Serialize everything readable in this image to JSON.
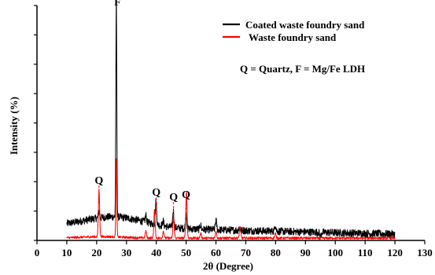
{
  "chart_data": {
    "type": "line",
    "title": "",
    "xlabel": "2θ (Degree)",
    "ylabel": "Intensity (%)",
    "xlim": [
      0,
      130
    ],
    "ylim": [
      0,
      100
    ],
    "x_ticks": [
      0,
      10,
      20,
      30,
      40,
      50,
      60,
      70,
      80,
      90,
      100,
      110,
      120,
      130
    ],
    "y_tick_labels_shown": false,
    "grid": false,
    "legend_position": "top-right",
    "legend_note": "Q = Quartz, F = Mg/Fe LDH",
    "series": [
      {
        "name": "Coated waste foundry sand",
        "color": "#000000",
        "x_range": [
          10,
          120
        ],
        "baseline": 6,
        "peaks": [
          {
            "x": 20.8,
            "y": 9
          },
          {
            "x": 26.6,
            "y": 98
          },
          {
            "x": 36.5,
            "y": 9
          },
          {
            "x": 39.9,
            "y": 16
          },
          {
            "x": 42.3,
            "y": 8
          },
          {
            "x": 45.7,
            "y": 13
          },
          {
            "x": 50.0,
            "y": 12
          },
          {
            "x": 54.8,
            "y": 8
          },
          {
            "x": 60.0,
            "y": 10
          },
          {
            "x": 67.8,
            "y": 7
          },
          {
            "x": 79.9,
            "y": 9
          },
          {
            "x": 95.0,
            "y": 4
          }
        ]
      },
      {
        "name": "Waste foundry sand",
        "color": "#ff0000",
        "x_range": [
          10,
          120
        ],
        "baseline": 1,
        "peaks": [
          {
            "x": 20.8,
            "y": 21
          },
          {
            "x": 26.6,
            "y": 35
          },
          {
            "x": 36.5,
            "y": 4
          },
          {
            "x": 39.4,
            "y": 13
          },
          {
            "x": 42.4,
            "y": 4
          },
          {
            "x": 45.8,
            "y": 10
          },
          {
            "x": 50.1,
            "y": 21
          },
          {
            "x": 54.9,
            "y": 3
          },
          {
            "x": 60.0,
            "y": 4
          },
          {
            "x": 68.1,
            "y": 6
          },
          {
            "x": 79.9,
            "y": 3
          }
        ]
      }
    ],
    "annotations": [
      {
        "text": "F",
        "x": 27.0,
        "y": 100
      },
      {
        "text": "Q",
        "x": 20.8,
        "y": 24
      },
      {
        "text": "Q",
        "x": 40.0,
        "y": 19
      },
      {
        "text": "Q",
        "x": 45.8,
        "y": 17
      },
      {
        "text": "Q",
        "x": 50.0,
        "y": 18
      }
    ]
  }
}
